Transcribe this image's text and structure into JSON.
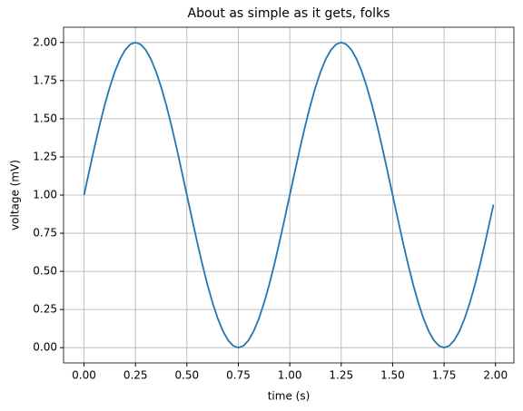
{
  "chart_data": {
    "type": "line",
    "title": "About as simple as it gets, folks",
    "x_label": "time (s)",
    "y_label": "voltage (mV)",
    "x": [
      0,
      0.025,
      0.05,
      0.075,
      0.1,
      0.125,
      0.15,
      0.175,
      0.2,
      0.225,
      0.25,
      0.275,
      0.3,
      0.325,
      0.35,
      0.375,
      0.4,
      0.425,
      0.45,
      0.475,
      0.5,
      0.525,
      0.55,
      0.575,
      0.6,
      0.625,
      0.65,
      0.675,
      0.7,
      0.725,
      0.75,
      0.775,
      0.8,
      0.825,
      0.85,
      0.875,
      0.9,
      0.925,
      0.95,
      0.975,
      1,
      1.025,
      1.05,
      1.075,
      1.1,
      1.125,
      1.15,
      1.175,
      1.2,
      1.225,
      1.25,
      1.275,
      1.3,
      1.325,
      1.35,
      1.375,
      1.4,
      1.425,
      1.45,
      1.475,
      1.5,
      1.525,
      1.55,
      1.575,
      1.6,
      1.625,
      1.65,
      1.675,
      1.7,
      1.725,
      1.75,
      1.775,
      1.8,
      1.825,
      1.85,
      1.875,
      1.9,
      1.925,
      1.95,
      1.975,
      1.99
    ],
    "series": [
      {
        "name": "voltage",
        "color": "#1f77b4",
        "values": [
          1,
          1.156,
          1.309,
          1.454,
          1.588,
          1.707,
          1.809,
          1.891,
          1.951,
          1.988,
          2,
          1.988,
          1.951,
          1.891,
          1.809,
          1.707,
          1.588,
          1.454,
          1.309,
          1.156,
          1,
          0.844,
          0.691,
          0.546,
          0.412,
          0.293,
          0.191,
          0.109,
          0.049,
          0.012,
          0,
          0.012,
          0.049,
          0.109,
          0.191,
          0.293,
          0.412,
          0.546,
          0.691,
          0.844,
          1,
          1.156,
          1.309,
          1.454,
          1.588,
          1.707,
          1.809,
          1.891,
          1.951,
          1.988,
          2,
          1.988,
          1.951,
          1.891,
          1.809,
          1.707,
          1.588,
          1.454,
          1.309,
          1.156,
          1,
          0.844,
          0.691,
          0.546,
          0.412,
          0.293,
          0.191,
          0.109,
          0.049,
          0.012,
          0,
          0.012,
          0.049,
          0.109,
          0.191,
          0.293,
          0.412,
          0.546,
          0.691,
          0.844,
          0.937
        ]
      }
    ],
    "xlim": [
      -0.0995,
      2.0895
    ],
    "xticks": [
      {
        "value": 0,
        "label": "0.00"
      },
      {
        "value": 0.25,
        "label": "0.25"
      },
      {
        "value": 0.5,
        "label": "0.50"
      },
      {
        "value": 0.75,
        "label": "0.75"
      },
      {
        "value": 1,
        "label": "1.00"
      },
      {
        "value": 1.25,
        "label": "1.25"
      },
      {
        "value": 1.5,
        "label": "1.50"
      },
      {
        "value": 1.75,
        "label": "1.75"
      },
      {
        "value": 2,
        "label": "2.00"
      }
    ],
    "ylim": [
      -0.1,
      2.1
    ],
    "yticks": [
      {
        "value": 0,
        "label": "0.00"
      },
      {
        "value": 0.25,
        "label": "0.25"
      },
      {
        "value": 0.5,
        "label": "0.50"
      },
      {
        "value": 0.75,
        "label": "0.75"
      },
      {
        "value": 1,
        "label": "1.00"
      },
      {
        "value": 1.25,
        "label": "1.25"
      },
      {
        "value": 1.5,
        "label": "1.50"
      },
      {
        "value": 1.75,
        "label": "1.75"
      },
      {
        "value": 2,
        "label": "2.00"
      }
    ],
    "grid": true
  }
}
